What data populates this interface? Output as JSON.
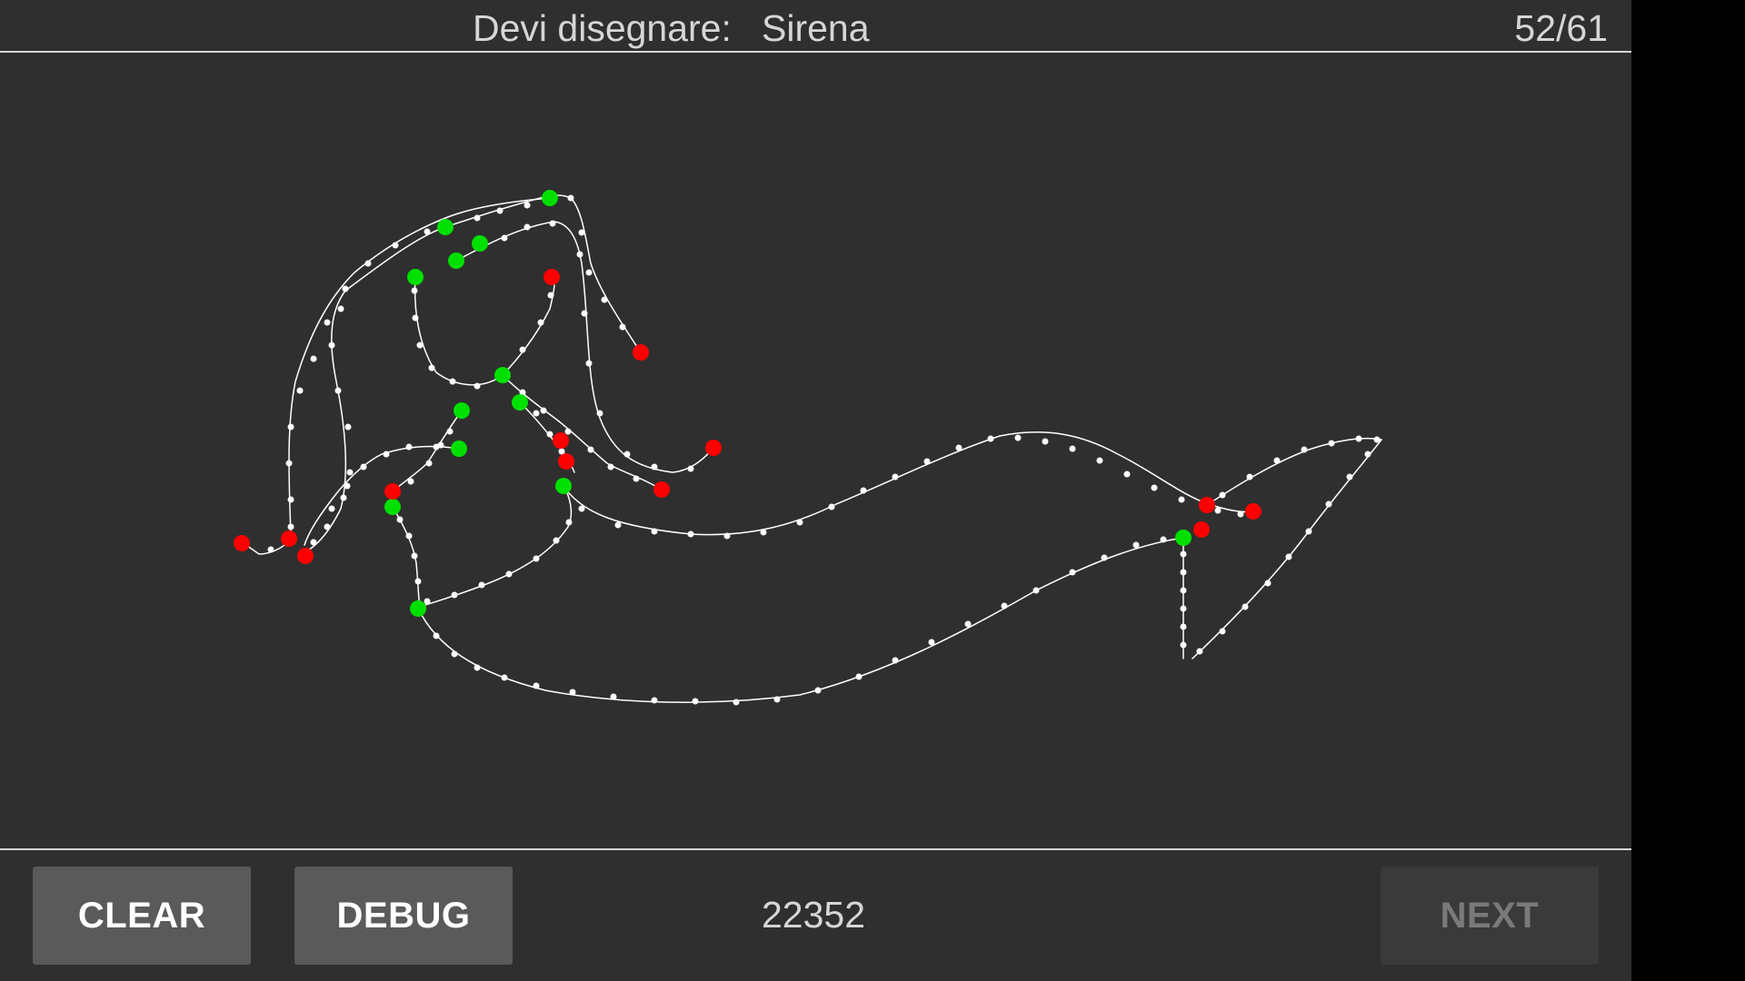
{
  "header": {
    "prompt_label": "Devi disegnare:",
    "prompt_word": "Sirena",
    "counter": "52/61"
  },
  "footer": {
    "clear_label": "CLEAR",
    "debug_label": "DEBUG",
    "score": "22352",
    "next_label": "NEXT"
  },
  "colors": {
    "background": "#2f2f2f",
    "stroke": "#ffffff",
    "start_marker": "#00e000",
    "end_marker": "#ff0000"
  }
}
